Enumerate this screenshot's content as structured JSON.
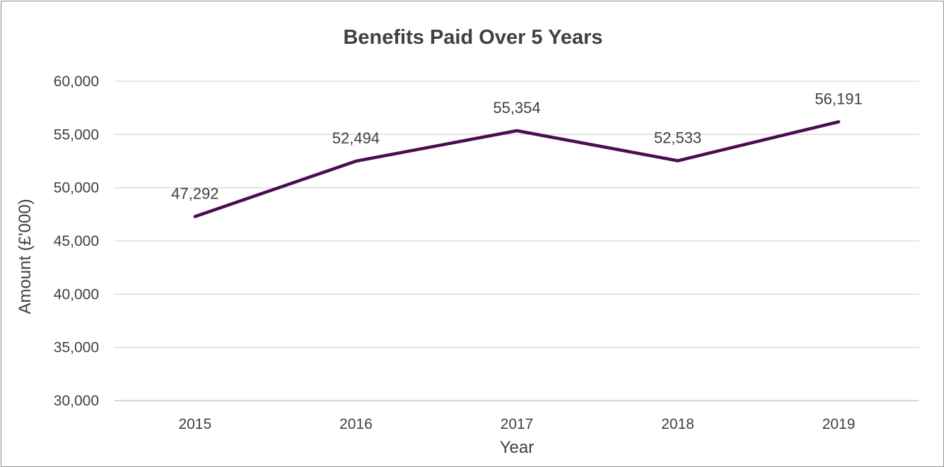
{
  "chart_data": {
    "type": "line",
    "title": "Benefits Paid Over 5 Years",
    "xlabel": "Year",
    "ylabel": "Amount (£'000)",
    "categories": [
      "2015",
      "2016",
      "2017",
      "2018",
      "2019"
    ],
    "series": [
      {
        "values": [
          47292,
          52494,
          55354,
          52533,
          56191
        ],
        "data_labels": [
          "47,292",
          "52,494",
          "55,354",
          "52,533",
          "56,191"
        ],
        "color": "#4a0d4f"
      }
    ],
    "ylim": [
      30000,
      60000
    ],
    "y_ticks": [
      60000,
      55000,
      50000,
      45000,
      40000,
      35000,
      30000
    ],
    "y_tick_labels": [
      "60,000",
      "55,000",
      "50,000",
      "45,000",
      "40,000",
      "35,000",
      "30,000"
    ],
    "grid": true,
    "legend": "none"
  }
}
